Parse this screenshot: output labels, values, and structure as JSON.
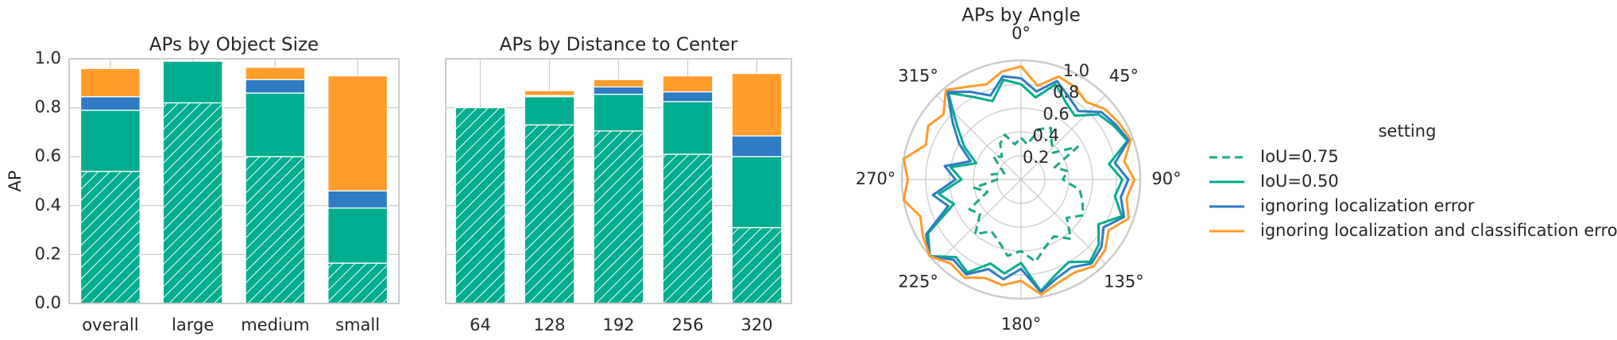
{
  "chart_data": [
    {
      "type": "stacked-bar",
      "title": "APs by Object Size",
      "ylabel": "AP",
      "categories": [
        "overall",
        "large",
        "medium",
        "small"
      ],
      "series": [
        {
          "color": "#00ad8e",
          "hatch": true,
          "values": [
            0.54,
            0.82,
            0.6,
            0.165
          ]
        },
        {
          "color": "#00ad8e",
          "values": [
            0.25,
            0.17,
            0.26,
            0.225
          ]
        },
        {
          "color": "#2f7bc4",
          "values": [
            0.055,
            0,
            0.055,
            0.07
          ]
        },
        {
          "color": "#ff9c2a",
          "values": [
            0.115,
            0,
            0.05,
            0.47
          ]
        }
      ],
      "ylim": [
        0,
        1
      ],
      "yticks": [
        {
          "value": 0,
          "label": "0.0"
        },
        0.2,
        0.4,
        0.6,
        0.8,
        {
          "value": 1,
          "label": "1.0"
        }
      ],
      "show_ytick_labels": true,
      "grid": true
    },
    {
      "type": "stacked-bar",
      "title": "APs by Distance to Center",
      "categories": [
        "64",
        "128",
        "192",
        "256",
        "320"
      ],
      "series": [
        {
          "color": "#00ad8e",
          "hatch": true,
          "values": [
            0.8,
            0.73,
            0.705,
            0.61,
            0.31
          ]
        },
        {
          "color": "#00ad8e",
          "values": [
            0,
            0.115,
            0.15,
            0.215,
            0.29
          ]
        },
        {
          "color": "#2f7bc4",
          "values": [
            0,
            0.005,
            0.03,
            0.04,
            0.085
          ]
        },
        {
          "color": "#ff9c2a",
          "values": [
            0,
            0.02,
            0.03,
            0.065,
            0.255
          ]
        }
      ],
      "ylim": [
        0,
        1
      ],
      "yticks": [
        0,
        0.2,
        0.4,
        0.6,
        0.8,
        1
      ],
      "show_ytick_labels": false,
      "grid": true
    },
    {
      "type": "polar-line",
      "title": "APs by Angle",
      "legend_title": "setting",
      "legend": "right",
      "x": [
        0,
        10,
        20,
        30,
        40,
        50,
        60,
        70,
        80,
        90,
        100,
        110,
        120,
        130,
        140,
        150,
        160,
        170,
        180,
        190,
        200,
        210,
        220,
        230,
        240,
        250,
        260,
        270,
        280,
        290,
        300,
        310,
        320,
        330,
        340,
        350
      ],
      "series": [
        {
          "name": "IoU=0.75",
          "color": "#1aa88a",
          "style": "dashed",
          "values": [
            0.35,
            0.3,
            0.45,
            0.5,
            0.4,
            0.35,
            0.55,
            0.3,
            0.4,
            0.35,
            0.5,
            0.55,
            0.6,
            0.5,
            0.65,
            0.55,
            0.6,
            0.7,
            0.6,
            0.65,
            0.55,
            0.5,
            0.6,
            0.45,
            0.5,
            0.3,
            0.4,
            0.2,
            0.25,
            0.15,
            0.2,
            0.3,
            0.25,
            0.35,
            0.4,
            0.3
          ]
        },
        {
          "name": "IoU=0.50",
          "color": "#00ad8e",
          "style": "solid",
          "values": [
            0.8,
            0.7,
            0.85,
            0.75,
            0.7,
            0.85,
            0.9,
            0.95,
            0.75,
            0.85,
            0.8,
            0.9,
            0.75,
            0.85,
            0.9,
            0.8,
            0.85,
            0.95,
            0.7,
            0.8,
            0.75,
            0.9,
            0.85,
            1.0,
            0.9,
            0.6,
            0.7,
            0.5,
            0.6,
            0.4,
            0.55,
            0.7,
            0.95,
            0.8,
            0.7,
            0.85
          ]
        },
        {
          "name": "ignoring localization error",
          "color": "#2f7bc4",
          "style": "solid",
          "values": [
            0.85,
            0.75,
            0.88,
            0.8,
            0.75,
            0.88,
            0.92,
            0.96,
            0.8,
            0.9,
            0.85,
            0.92,
            0.8,
            0.88,
            0.92,
            0.85,
            0.88,
            0.96,
            0.75,
            0.85,
            0.8,
            0.92,
            0.88,
            1.0,
            0.92,
            0.65,
            0.75,
            0.55,
            0.65,
            0.45,
            0.6,
            0.75,
            0.96,
            0.85,
            0.75,
            0.88
          ]
        },
        {
          "name": "ignoring localization and classification error",
          "color": "#ff9c2a",
          "style": "solid",
          "values": [
            0.95,
            0.8,
            0.92,
            0.9,
            0.85,
            0.92,
            0.95,
            0.98,
            0.88,
            0.95,
            0.9,
            0.96,
            0.85,
            0.92,
            0.95,
            0.9,
            0.92,
            0.98,
            0.85,
            0.9,
            0.88,
            0.95,
            0.92,
            1.0,
            0.95,
            0.9,
            1.0,
            0.95,
            1.0,
            0.85,
            0.9,
            0.85,
            0.98,
            0.9,
            0.85,
            0.92
          ]
        }
      ],
      "ylim": [
        0,
        1
      ],
      "yticks": [
        0.2,
        0.4,
        0.6,
        0.8,
        {
          "value": 1,
          "label": "1.0"
        }
      ],
      "xticks": [
        {
          "value": 0,
          "label": "0°"
        },
        {
          "value": 45,
          "label": "45°"
        },
        {
          "value": 90,
          "label": "90°"
        },
        {
          "value": 135,
          "label": "135°"
        },
        {
          "value": 180,
          "label": "180°"
        },
        {
          "value": 225,
          "label": "225°"
        },
        {
          "value": 270,
          "label": "270°"
        },
        {
          "value": 315,
          "label": "315°"
        }
      ],
      "grid": true
    }
  ]
}
